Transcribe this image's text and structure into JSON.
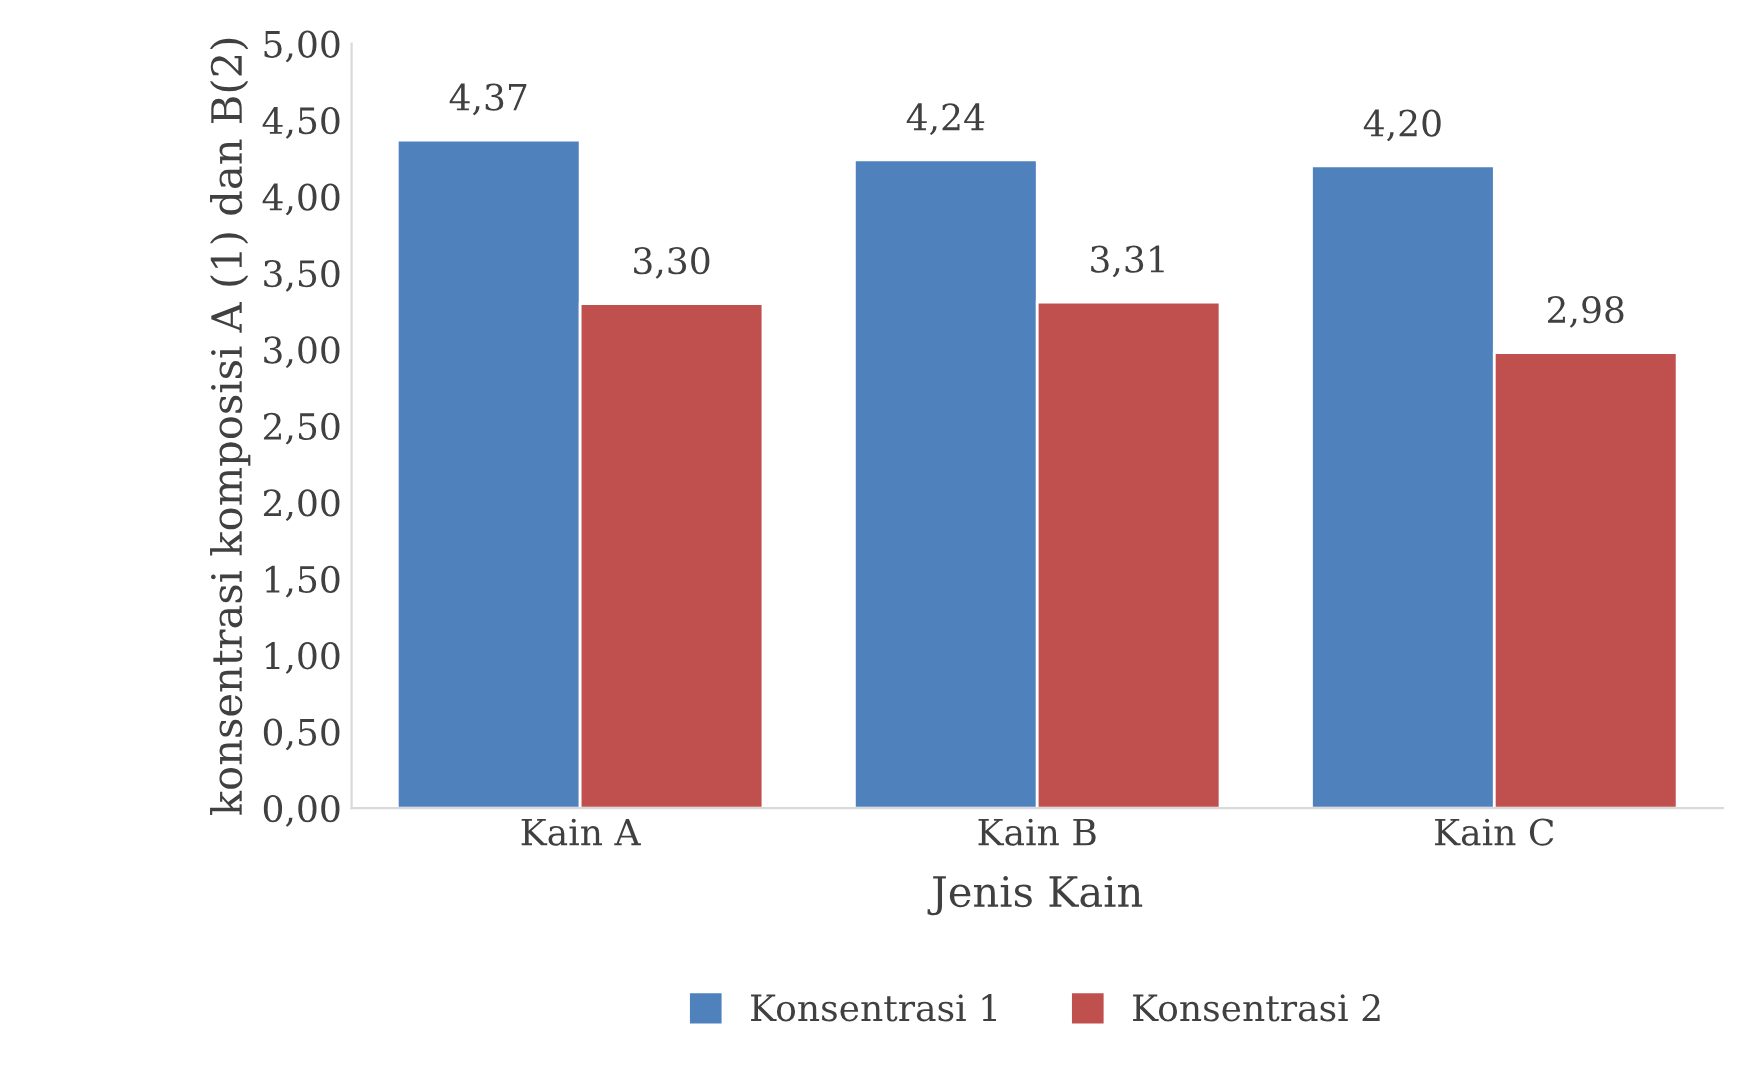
{
  "chart_data": {
    "type": "bar",
    "xlabel": "Jenis Kain",
    "ylabel": "konsentrasi komposisi A (1) dan B(2)",
    "categories": [
      "Kain A",
      "Kain B",
      "Kain C"
    ],
    "series": [
      {
        "name": "Konsentrasi 1",
        "color": "#4f81bd",
        "values": [
          4.37,
          4.24,
          4.2
        ],
        "value_labels": [
          "4,37",
          "4,24",
          "4,20"
        ]
      },
      {
        "name": "Konsentrasi 2",
        "color": "#c0504d",
        "values": [
          3.3,
          3.31,
          2.98
        ],
        "value_labels": [
          "3,30",
          "3,31",
          "2,98"
        ]
      }
    ],
    "ylim": [
      0,
      5
    ],
    "yticks": [
      {
        "value": 0,
        "label": "0,00"
      },
      {
        "value": 0.5,
        "label": "0,50"
      },
      {
        "value": 1,
        "label": "1,00"
      },
      {
        "value": 1.5,
        "label": "1,50"
      },
      {
        "value": 2,
        "label": "2,00"
      },
      {
        "value": 2.5,
        "label": "2,50"
      },
      {
        "value": 3,
        "label": "3,00"
      },
      {
        "value": 3.5,
        "label": "3,50"
      },
      {
        "value": 4,
        "label": "4,00"
      },
      {
        "value": 4.5,
        "label": "4,50"
      },
      {
        "value": 5,
        "label": "5,00"
      }
    ],
    "grid": false,
    "legend": "bottom"
  }
}
